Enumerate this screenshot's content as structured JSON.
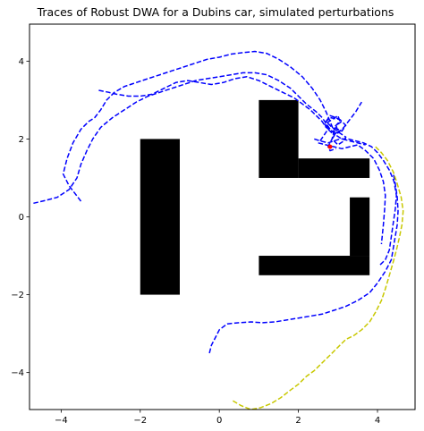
{
  "chart_data": {
    "type": "line",
    "title": "Traces of Robust DWA for a Dubins car, simulated perturbations",
    "xlabel": "",
    "ylabel": "",
    "xlim": [
      -4.8,
      4.95
    ],
    "ylim": [
      -4.95,
      4.95
    ],
    "xticks": [
      -4,
      -2,
      0,
      2,
      4
    ],
    "yticks": [
      -4,
      -2,
      0,
      2,
      4
    ],
    "xtick_labels": [
      "−4",
      "−2",
      "0",
      "2",
      "4"
    ],
    "ytick_labels": [
      "−4",
      "−2",
      "0",
      "2",
      "4"
    ],
    "grid": false,
    "legend": "none",
    "obstacles": [
      {
        "x": [
          -2.0,
          -1.0
        ],
        "y": [
          -2.0,
          2.0
        ]
      },
      {
        "x": [
          1.0,
          2.0
        ],
        "y": [
          1.0,
          3.0
        ]
      },
      {
        "x": [
          2.0,
          3.8
        ],
        "y": [
          1.0,
          1.5
        ]
      },
      {
        "x": [
          1.0,
          3.8
        ],
        "y": [
          -1.5,
          -1.0
        ]
      },
      {
        "x": [
          3.3,
          3.8
        ],
        "y": [
          -1.0,
          0.5
        ]
      }
    ],
    "obstacle_color": "#000000",
    "goal_marker": {
      "x": 2.8,
      "y": 1.8,
      "color": "#ff0000"
    },
    "series": [
      {
        "color": "#0000ff",
        "style": "dashed",
        "x": [
          -3.5,
          -3.8,
          -3.95,
          -3.85,
          -3.7,
          -3.5,
          -3.3,
          -3.15,
          -3.0,
          -2.85,
          -2.65,
          -2.4,
          -2.1,
          -1.8,
          -1.5,
          -1.2,
          -0.9,
          -0.6,
          -0.3,
          0.0,
          0.3,
          0.6,
          0.9,
          1.2,
          1.5,
          1.8,
          2.1,
          2.35,
          2.55,
          2.7,
          2.8,
          2.9,
          2.85,
          2.75,
          2.8,
          2.95
        ],
        "y": [
          0.4,
          0.8,
          1.1,
          1.5,
          1.9,
          2.25,
          2.45,
          2.55,
          2.75,
          3.0,
          3.2,
          3.35,
          3.45,
          3.55,
          3.65,
          3.75,
          3.85,
          3.95,
          4.05,
          4.1,
          4.18,
          4.22,
          4.25,
          4.2,
          4.05,
          3.85,
          3.6,
          3.3,
          3.0,
          2.7,
          2.45,
          2.2,
          2.0,
          1.8,
          1.7,
          1.75
        ]
      },
      {
        "color": "#0000ff",
        "style": "dashed",
        "x": [
          -4.7,
          -4.4,
          -4.1,
          -3.8,
          -3.6,
          -3.5,
          -3.35,
          -3.2,
          -3.0,
          -2.7,
          -2.4,
          -2.1,
          -1.8,
          -1.5,
          -1.2,
          -0.9,
          -0.6,
          -0.3,
          0.0,
          0.3,
          0.6,
          0.9,
          1.2,
          1.5,
          1.8,
          2.0,
          2.2,
          2.45,
          2.6,
          2.7,
          2.8,
          2.95,
          3.1,
          3.3,
          3.5,
          3.7
        ],
        "y": [
          0.35,
          0.42,
          0.5,
          0.7,
          1.0,
          1.35,
          1.7,
          2.0,
          2.3,
          2.55,
          2.75,
          2.95,
          3.1,
          3.2,
          3.3,
          3.4,
          3.5,
          3.55,
          3.6,
          3.65,
          3.7,
          3.7,
          3.65,
          3.5,
          3.3,
          3.1,
          2.9,
          2.7,
          2.55,
          2.4,
          2.25,
          2.1,
          2.0,
          1.95,
          1.9,
          1.85
        ]
      },
      {
        "color": "#0000ff",
        "style": "dashed",
        "x": [
          -3.05,
          -2.8,
          -2.6,
          -2.3,
          -2.0,
          -1.7,
          -1.4,
          -1.1,
          -0.8,
          -0.5,
          -0.2,
          0.1,
          0.4,
          0.7,
          1.0,
          1.3,
          1.6,
          1.9,
          2.1,
          2.3,
          2.45,
          2.6,
          2.7,
          2.85,
          3.0,
          3.15,
          3.3,
          3.45,
          3.6
        ],
        "y": [
          3.25,
          3.2,
          3.15,
          3.1,
          3.1,
          3.15,
          3.3,
          3.45,
          3.5,
          3.45,
          3.4,
          3.45,
          3.55,
          3.6,
          3.5,
          3.35,
          3.2,
          3.05,
          2.9,
          2.75,
          2.6,
          2.45,
          2.3,
          2.2,
          2.15,
          2.3,
          2.5,
          2.7,
          2.95
        ]
      },
      {
        "color": "#0000ff",
        "style": "dashed",
        "x": [
          2.4,
          2.55,
          2.75,
          2.9,
          3.05,
          3.25,
          3.45,
          3.65,
          3.85,
          4.0,
          4.15,
          4.3,
          4.42,
          4.48,
          4.45,
          4.4,
          4.35,
          4.3,
          4.2,
          4.05
        ],
        "y": [
          2.0,
          1.95,
          1.9,
          1.95,
          2.0,
          2.0,
          1.95,
          1.9,
          1.8,
          1.65,
          1.45,
          1.2,
          0.9,
          0.55,
          0.2,
          -0.15,
          -0.5,
          -0.85,
          -1.1,
          -1.25
        ]
      },
      {
        "color": "#0000ff",
        "style": "dashed",
        "x": [
          2.5,
          2.7,
          2.9,
          3.1,
          3.3,
          3.5,
          3.7,
          3.9,
          4.05,
          4.15,
          4.2,
          4.18,
          4.15,
          4.1
        ],
        "y": [
          1.9,
          1.85,
          1.8,
          1.75,
          1.8,
          1.85,
          1.7,
          1.5,
          1.2,
          0.9,
          0.55,
          0.2,
          -0.2,
          -0.7
        ]
      },
      {
        "color": "#0000ff",
        "style": "dashed",
        "x": [
          -0.25,
          -0.2,
          -0.1,
          0.0,
          0.2,
          0.5,
          0.8,
          1.1,
          1.4,
          1.7,
          2.0,
          2.3,
          2.6,
          2.9,
          3.2,
          3.5,
          3.8,
          4.0,
          4.2,
          4.35,
          4.4,
          4.45,
          4.5,
          4.52,
          4.5,
          4.45,
          4.4
        ],
        "y": [
          -3.5,
          -3.3,
          -3.1,
          -2.9,
          -2.75,
          -2.72,
          -2.7,
          -2.72,
          -2.7,
          -2.65,
          -2.6,
          -2.55,
          -2.5,
          -2.4,
          -2.3,
          -2.15,
          -1.95,
          -1.7,
          -1.4,
          -1.1,
          -0.8,
          -0.5,
          -0.2,
          0.15,
          0.5,
          0.85,
          1.1
        ]
      },
      {
        "color": "#0000ff",
        "style": "dashed",
        "x": [
          2.55,
          2.65,
          2.75,
          2.7,
          2.85,
          3.0,
          3.05,
          2.9,
          3.1,
          3.2,
          3.05,
          2.8,
          2.65,
          2.75,
          2.9,
          3.0,
          2.95,
          3.1,
          2.95,
          2.8,
          2.7,
          2.85,
          3.05,
          3.2,
          3.15,
          3.0,
          2.85,
          2.95,
          3.1
        ],
        "y": [
          1.95,
          2.1,
          2.25,
          2.4,
          2.5,
          2.6,
          2.45,
          2.3,
          2.2,
          2.35,
          2.5,
          2.55,
          2.4,
          2.25,
          2.1,
          2.2,
          2.35,
          2.45,
          2.55,
          2.6,
          2.45,
          2.3,
          2.15,
          2.05,
          1.95,
          1.85,
          2.0,
          2.15,
          2.25
        ]
      },
      {
        "color": "#c8c800",
        "style": "dashed",
        "x": [
          3.95,
          4.1,
          4.25,
          4.4,
          4.5,
          4.6,
          4.65,
          4.62,
          4.55,
          4.48,
          4.4,
          4.3,
          4.2,
          4.1,
          3.95,
          3.8,
          3.6,
          3.4,
          3.2,
          3.0,
          2.8,
          2.6,
          2.4,
          2.2,
          2.0,
          1.8,
          1.55,
          1.3,
          1.05,
          0.8,
          0.55,
          0.3
        ],
        "y": [
          1.8,
          1.65,
          1.45,
          1.15,
          0.85,
          0.5,
          0.15,
          -0.2,
          -0.55,
          -0.85,
          -1.15,
          -1.5,
          -1.85,
          -2.15,
          -2.45,
          -2.7,
          -2.9,
          -3.05,
          -3.15,
          -3.35,
          -3.55,
          -3.75,
          -3.95,
          -4.1,
          -4.3,
          -4.45,
          -4.65,
          -4.8,
          -4.9,
          -4.95,
          -4.85,
          -4.7
        ]
      }
    ]
  }
}
